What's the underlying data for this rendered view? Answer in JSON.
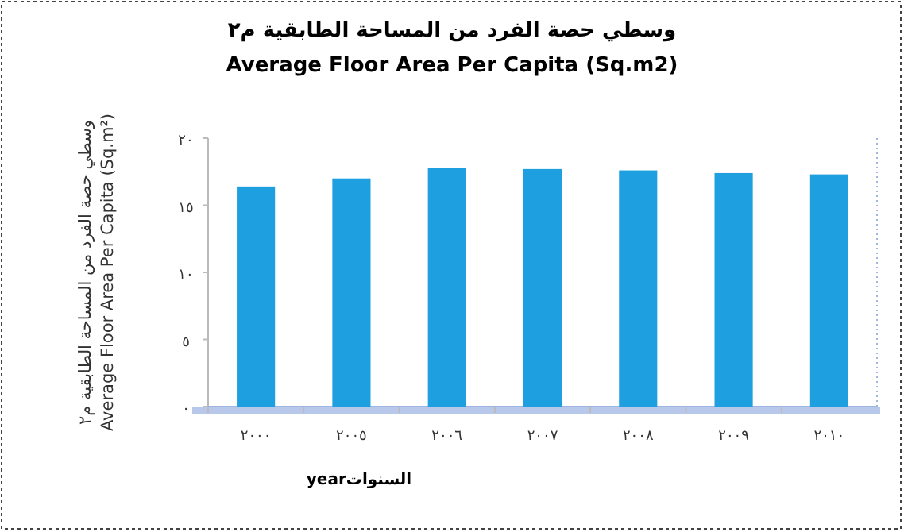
{
  "chart_data": {
    "type": "bar",
    "title": "وسطي حصة الفرد من المساحة الطابقية م٢",
    "subtitle": "Average Floor Area Per Capita (Sq.m2)",
    "ylabel": "وسطي حصة الفرد من المساحة الطابقية م٢\nAverage Floor Area Per Capita (Sq.m²)",
    "xlabel": "السنواتyear",
    "categories": [
      "٢٠٠٠",
      "٢٠٠٥",
      "٢٠٠٦",
      "٢٠٠٧",
      "٢٠٠٨",
      "٢٠٠٩",
      "٢٠١٠"
    ],
    "values": [
      16.4,
      17.0,
      17.8,
      17.7,
      17.6,
      17.4,
      17.3
    ],
    "color": "#1e9fdf",
    "ylim": [
      0,
      20
    ],
    "yticks": [
      {
        "value": 0,
        "label": "٠"
      },
      {
        "value": 5,
        "label": "٥"
      },
      {
        "value": 10,
        "label": "١٠"
      },
      {
        "value": 15,
        "label": "١٥"
      },
      {
        "value": 20,
        "label": "٢٠"
      }
    ],
    "grid": false
  }
}
